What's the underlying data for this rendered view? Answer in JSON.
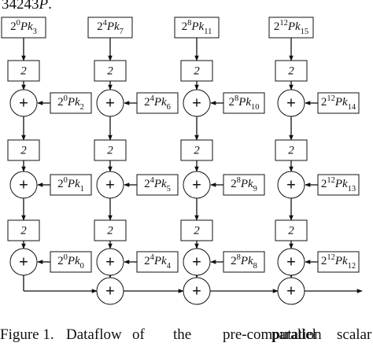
{
  "header_fragment": {
    "num": "34243",
    "var": "P",
    "end": "."
  },
  "mult_label": "2",
  "plus_symbol": "+",
  "columns": [
    {
      "top": {
        "base": "2",
        "exp": "0",
        "var": "Pk",
        "sub": "3"
      },
      "inputs": [
        {
          "base": "2",
          "exp": "0",
          "var": "Pk",
          "sub": "2"
        },
        {
          "base": "2",
          "exp": "0",
          "var": "Pk",
          "sub": "1"
        },
        {
          "base": "2",
          "exp": "0",
          "var": "Pk",
          "sub": "0"
        }
      ]
    },
    {
      "top": {
        "base": "2",
        "exp": "4",
        "var": "Pk",
        "sub": "7"
      },
      "inputs": [
        {
          "base": "2",
          "exp": "4",
          "var": "Pk",
          "sub": "6"
        },
        {
          "base": "2",
          "exp": "4",
          "var": "Pk",
          "sub": "5"
        },
        {
          "base": "2",
          "exp": "4",
          "var": "Pk",
          "sub": "4"
        }
      ]
    },
    {
      "top": {
        "base": "2",
        "exp": "8",
        "var": "Pk",
        "sub": "11"
      },
      "inputs": [
        {
          "base": "2",
          "exp": "8",
          "var": "Pk",
          "sub": "10"
        },
        {
          "base": "2",
          "exp": "8",
          "var": "Pk",
          "sub": "9"
        },
        {
          "base": "2",
          "exp": "8",
          "var": "Pk",
          "sub": "8"
        }
      ]
    },
    {
      "top": {
        "base": "2",
        "exp": "12",
        "var": "Pk",
        "sub": "15"
      },
      "inputs": [
        {
          "base": "2",
          "exp": "12",
          "var": "Pk",
          "sub": "14"
        },
        {
          "base": "2",
          "exp": "12",
          "var": "Pk",
          "sub": "13"
        },
        {
          "base": "2",
          "exp": "12",
          "var": "Pk",
          "sub": "12"
        }
      ]
    }
  ],
  "caption_fragment": [
    "Figure 1.",
    "Dataflow",
    "of",
    "the",
    "pre-computation",
    "parallel",
    "scalar"
  ]
}
